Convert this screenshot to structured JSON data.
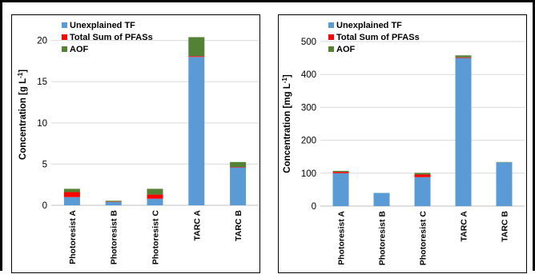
{
  "colors": {
    "unexplained": "#5b9bd5",
    "pfas": "#ff0000",
    "aof": "#548235"
  },
  "legend": [
    "Unexplained TF",
    "Total Sum of PFASs",
    "AOF"
  ],
  "chart_data": [
    {
      "type": "bar",
      "stacked": true,
      "title": "",
      "xlabel": "",
      "ylabel": "Concentration [g L",
      "ylabel_sup": "-1",
      "ylabel_end": "]",
      "ylim": [
        0,
        22
      ],
      "yticks": [
        0,
        5,
        10,
        15,
        20
      ],
      "grid": true,
      "legend_position": "top-left",
      "categories": [
        "Photoresist A",
        "Photoresist B",
        "Photoresist C",
        "TARC A",
        "TARC B"
      ],
      "series": [
        {
          "name": "Unexplained TF",
          "values": [
            1.0,
            0.4,
            0.8,
            18.0,
            4.6
          ]
        },
        {
          "name": "Total Sum of PFASs",
          "values": [
            0.6,
            0.05,
            0.5,
            0.1,
            0.05
          ]
        },
        {
          "name": "AOF",
          "values": [
            0.4,
            0.1,
            0.7,
            2.3,
            0.6
          ]
        }
      ]
    },
    {
      "type": "bar",
      "stacked": true,
      "title": "",
      "xlabel": "",
      "ylabel": "Concentration [mg L",
      "ylabel_sup": "-1",
      "ylabel_end": "]",
      "ylim": [
        0,
        500
      ],
      "yticks": [
        0,
        100,
        200,
        300,
        400,
        500
      ],
      "grid": true,
      "legend_position": "top-left",
      "categories": [
        "Photoresist A",
        "Photoresist B",
        "Photoresist C",
        "TARC A",
        "TARC B"
      ],
      "series": [
        {
          "name": "Unexplained TF",
          "values": [
            100,
            40,
            88,
            450,
            133
          ]
        },
        {
          "name": "Total Sum of PFASs",
          "values": [
            4,
            0,
            8,
            2,
            0
          ]
        },
        {
          "name": "AOF",
          "values": [
            3,
            0,
            5,
            6,
            1
          ]
        }
      ]
    }
  ]
}
